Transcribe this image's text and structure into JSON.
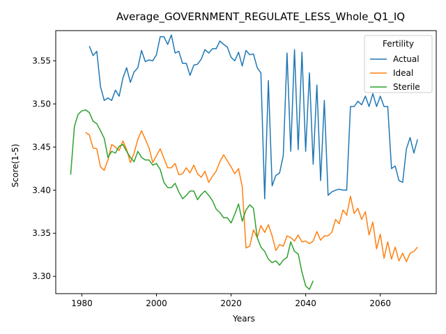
{
  "chart_data": {
    "type": "line",
    "title": "Average_GOVERNMENT_REGULATE_LESS_Whole_Q1_IQ",
    "xlabel": "Years",
    "ylabel": "Score(1-5)",
    "xlim": [
      1973,
      2075
    ],
    "ylim": [
      3.28,
      3.585
    ],
    "xticks": [
      1980,
      2000,
      2020,
      2040,
      2060
    ],
    "yticks": [
      3.3,
      3.35,
      3.4,
      3.45,
      3.5,
      3.55
    ],
    "ytick_labels": [
      "3.30",
      "3.35",
      "3.40",
      "3.45",
      "3.50",
      "3.55"
    ],
    "grid": false,
    "legend": {
      "title": "Fertility",
      "position": "top-right"
    },
    "series": [
      {
        "name": "Actual",
        "color": "#1f77b4",
        "x": [
          1982,
          1983,
          1984,
          1985,
          1986,
          1987,
          1988,
          1989,
          1990,
          1991,
          1992,
          1993,
          1994,
          1995,
          1996,
          1997,
          1998,
          1999,
          2000,
          2001,
          2002,
          2003,
          2004,
          2005,
          2006,
          2007,
          2008,
          2009,
          2010,
          2011,
          2012,
          2013,
          2014,
          2015,
          2016,
          2017,
          2018,
          2019,
          2020,
          2021,
          2022,
          2023,
          2024,
          2025,
          2026,
          2027,
          2028,
          2029,
          2030,
          2031,
          2032,
          2033,
          2034,
          2035,
          2036,
          2037,
          2038,
          2039,
          2040,
          2041,
          2042,
          2043,
          2044,
          2045,
          2046,
          2047,
          2048,
          2049,
          2050,
          2051,
          2052,
          2053,
          2054,
          2055,
          2056,
          2057,
          2058,
          2059,
          2060,
          2061,
          2062,
          2063,
          2064,
          2065,
          2066,
          2067,
          2068,
          2069,
          2070
        ],
        "values": [
          3.567,
          3.556,
          3.561,
          3.52,
          3.504,
          3.507,
          3.504,
          3.516,
          3.509,
          3.53,
          3.542,
          3.525,
          3.537,
          3.542,
          3.562,
          3.549,
          3.551,
          3.55,
          3.557,
          3.578,
          3.578,
          3.569,
          3.58,
          3.559,
          3.561,
          3.547,
          3.547,
          3.533,
          3.545,
          3.546,
          3.552,
          3.563,
          3.559,
          3.564,
          3.564,
          3.573,
          3.569,
          3.566,
          3.554,
          3.55,
          3.56,
          3.544,
          3.562,
          3.557,
          3.558,
          3.542,
          3.536,
          3.39,
          3.527,
          3.405,
          3.417,
          3.42,
          3.44,
          3.559,
          3.445,
          3.563,
          3.447,
          3.56,
          3.445,
          3.536,
          3.43,
          3.522,
          3.411,
          3.504,
          3.394,
          3.398,
          3.4,
          3.401,
          3.4,
          3.4,
          3.497,
          3.497,
          3.503,
          3.499,
          3.509,
          3.497,
          3.512,
          3.497,
          3.509,
          3.497,
          3.497,
          3.425,
          3.428,
          3.411,
          3.409,
          3.448,
          3.461,
          3.443,
          3.459
        ]
      },
      {
        "name": "Ideal",
        "color": "#ff7f0e",
        "x": [
          1981,
          1982,
          1983,
          1984,
          1985,
          1986,
          1987,
          1988,
          1989,
          1990,
          1991,
          1992,
          1993,
          1994,
          1995,
          1996,
          1997,
          1998,
          1999,
          2000,
          2001,
          2002,
          2003,
          2004,
          2005,
          2006,
          2007,
          2008,
          2009,
          2010,
          2011,
          2012,
          2013,
          2014,
          2015,
          2016,
          2017,
          2018,
          2019,
          2020,
          2021,
          2022,
          2023,
          2024,
          2025,
          2026,
          2027,
          2028,
          2029,
          2030,
          2031,
          2032,
          2033,
          2034,
          2035,
          2036,
          2037,
          2038,
          2039,
          2040,
          2041,
          2042,
          2043,
          2044,
          2045,
          2046,
          2047,
          2048,
          2049,
          2050,
          2051,
          2052,
          2053,
          2054,
          2055,
          2056,
          2057,
          2058,
          2059,
          2060,
          2061,
          2062,
          2063,
          2064,
          2065,
          2066,
          2067,
          2068,
          2069,
          2070
        ],
        "values": [
          3.467,
          3.464,
          3.449,
          3.448,
          3.427,
          3.423,
          3.435,
          3.453,
          3.45,
          3.446,
          3.457,
          3.447,
          3.432,
          3.443,
          3.459,
          3.469,
          3.459,
          3.449,
          3.432,
          3.44,
          3.448,
          3.437,
          3.426,
          3.426,
          3.431,
          3.418,
          3.419,
          3.426,
          3.42,
          3.429,
          3.419,
          3.415,
          3.422,
          3.409,
          3.416,
          3.422,
          3.433,
          3.441,
          3.434,
          3.427,
          3.419,
          3.425,
          3.404,
          3.333,
          3.335,
          3.354,
          3.345,
          3.359,
          3.351,
          3.36,
          3.347,
          3.33,
          3.337,
          3.335,
          3.347,
          3.345,
          3.341,
          3.348,
          3.34,
          3.341,
          3.338,
          3.341,
          3.352,
          3.342,
          3.347,
          3.347,
          3.351,
          3.366,
          3.361,
          3.377,
          3.371,
          3.393,
          3.373,
          3.379,
          3.366,
          3.375,
          3.348,
          3.363,
          3.332,
          3.349,
          3.321,
          3.34,
          3.32,
          3.334,
          3.318,
          3.327,
          3.317,
          3.327,
          3.329,
          3.334
        ]
      },
      {
        "name": "Sterile",
        "color": "#2ca02c",
        "x": [
          1977,
          1978,
          1979,
          1980,
          1981,
          1982,
          1983,
          1984,
          1985,
          1986,
          1987,
          1988,
          1989,
          1990,
          1991,
          1992,
          1993,
          1994,
          1995,
          1996,
          1997,
          1998,
          1999,
          2000,
          2001,
          2002,
          2003,
          2004,
          2005,
          2006,
          2007,
          2008,
          2009,
          2010,
          2011,
          2012,
          2013,
          2014,
          2015,
          2016,
          2017,
          2018,
          2019,
          2020,
          2021,
          2022,
          2023,
          2024,
          2025,
          2026,
          2027,
          2028,
          2029,
          2030,
          2031,
          2032,
          2033,
          2034,
          2035,
          2036,
          2037,
          2038,
          2039,
          2040,
          2041,
          2042
        ],
        "values": [
          3.418,
          3.474,
          3.488,
          3.492,
          3.493,
          3.49,
          3.48,
          3.477,
          3.469,
          3.46,
          3.438,
          3.445,
          3.443,
          3.451,
          3.453,
          3.445,
          3.438,
          3.433,
          3.445,
          3.438,
          3.435,
          3.435,
          3.429,
          3.431,
          3.424,
          3.409,
          3.403,
          3.403,
          3.408,
          3.398,
          3.39,
          3.394,
          3.399,
          3.399,
          3.389,
          3.395,
          3.399,
          3.394,
          3.388,
          3.378,
          3.374,
          3.368,
          3.368,
          3.362,
          3.372,
          3.384,
          3.364,
          3.377,
          3.383,
          3.379,
          3.345,
          3.334,
          3.329,
          3.32,
          3.316,
          3.318,
          3.313,
          3.319,
          3.322,
          3.34,
          3.329,
          3.326,
          3.305,
          3.289,
          3.285,
          3.295
        ]
      }
    ]
  }
}
